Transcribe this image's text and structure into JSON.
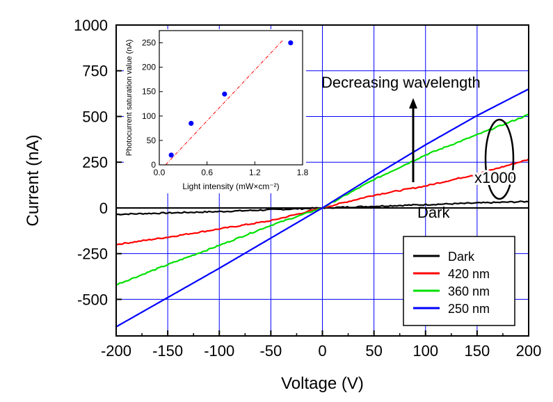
{
  "chart_data": [
    {
      "type": "line",
      "xlabel": "Voltage (V)",
      "ylabel": "Current (nA)",
      "xlim": [
        -200,
        200
      ],
      "ylim": [
        -700,
        1000
      ],
      "xticks": [
        -200,
        -150,
        -100,
        -50,
        0,
        50,
        100,
        150,
        200
      ],
      "yticks": [
        -500,
        -250,
        0,
        250,
        500,
        750,
        1000
      ],
      "grid": true,
      "legend_position": "bottom-right",
      "series": [
        {
          "name": "Dark",
          "color": "#000000",
          "x": [
            -200,
            -100,
            0,
            100,
            200
          ],
          "y": [
            -35,
            -20,
            0,
            18,
            35
          ]
        },
        {
          "name": "420 nm",
          "color": "#ff0000",
          "x": [
            -200,
            -150,
            -100,
            -50,
            0,
            50,
            100,
            150,
            200
          ],
          "y": [
            -200,
            -160,
            -115,
            -70,
            0,
            70,
            120,
            185,
            265
          ]
        },
        {
          "name": "360 nm",
          "color": "#00e000",
          "x": [
            -200,
            -150,
            -100,
            -50,
            0,
            50,
            100,
            150,
            200
          ],
          "y": [
            -420,
            -310,
            -205,
            -95,
            0,
            155,
            290,
            400,
            510
          ]
        },
        {
          "name": "250 nm",
          "color": "#0000ff",
          "x": [
            -200,
            -150,
            -100,
            -50,
            0,
            50,
            100,
            150,
            200
          ],
          "y": [
            -650,
            -490,
            -330,
            -165,
            0,
            175,
            345,
            505,
            650
          ]
        }
      ],
      "annotations": {
        "wavelength": "Decreasing wavelength",
        "scale": "x1000",
        "dark": "Dark"
      }
    },
    {
      "type": "scatter",
      "xlabel": "Light intensity (mW×cm⁻²)",
      "ylabel": "Photocurrent saturation value (nA)",
      "xlim": [
        0,
        1.8
      ],
      "ylim": [
        0,
        275
      ],
      "xticks": [
        "0.0",
        "0.6",
        "1.2",
        "1.8"
      ],
      "yticks": [
        0,
        50,
        100,
        150,
        200,
        250
      ],
      "points": {
        "x": [
          0.15,
          0.4,
          0.82,
          1.65
        ],
        "y": [
          20,
          85,
          145,
          250
        ]
      },
      "fit_line": {
        "x": [
          0.08,
          1.55
        ],
        "y": [
          0,
          255
        ],
        "color": "#ff0000"
      }
    }
  ]
}
